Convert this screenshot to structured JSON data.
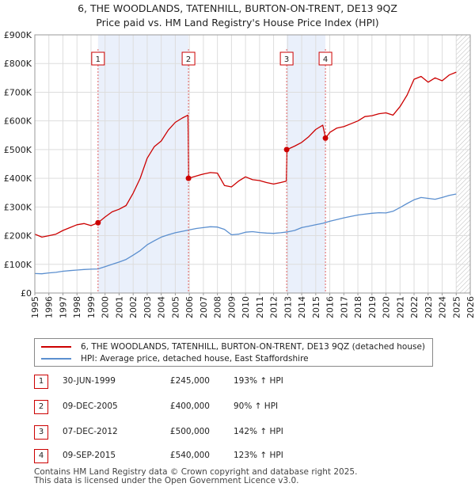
{
  "title_line1": "6, THE WOODLANDS, TATENHILL, BURTON-ON-TRENT, DE13 9QZ",
  "title_line2": "Price paid vs. HM Land Registry's House Price Index (HPI)",
  "chart_data": {
    "type": "line",
    "title": "6, THE WOODLANDS, TATENHILL, BURTON-ON-TRENT, DE13 9QZ — Price paid vs. HM Land Registry's House Price Index (HPI)",
    "xlim": [
      1995,
      2026
    ],
    "ylim": [
      0,
      900000
    ],
    "x_ticks": [
      1995,
      1996,
      1997,
      1998,
      1999,
      2000,
      2001,
      2002,
      2003,
      2004,
      2005,
      2006,
      2007,
      2008,
      2009,
      2010,
      2011,
      2012,
      2013,
      2014,
      2015,
      2016,
      2017,
      2018,
      2019,
      2020,
      2021,
      2022,
      2023,
      2024,
      2025,
      2026
    ],
    "y_ticks": [
      0,
      100000,
      200000,
      300000,
      400000,
      500000,
      600000,
      700000,
      800000,
      900000
    ],
    "y_tick_labels": [
      "£0",
      "£100K",
      "£200K",
      "£300K",
      "£400K",
      "£500K",
      "£600K",
      "£700K",
      "£800K",
      "£900K"
    ],
    "shaded_periods": [
      [
        1999.5,
        2005.94
      ],
      [
        2012.93,
        2015.69
      ]
    ],
    "hatched_region": [
      2025.0,
      2026.0
    ],
    "series": [
      {
        "name": "6, THE WOODLANDS, TATENHILL, BURTON-ON-TRENT, DE13 9QZ (detached house)",
        "color": "#cc0000",
        "x": [
          1995.0,
          1995.5,
          1996.0,
          1996.5,
          1997.0,
          1997.5,
          1998.0,
          1998.5,
          1999.0,
          1999.5,
          2000.0,
          2000.5,
          2001.0,
          2001.5,
          2002.0,
          2002.5,
          2003.0,
          2003.5,
          2004.0,
          2004.5,
          2005.0,
          2005.5,
          2005.9,
          2005.95,
          2006.5,
          2007.0,
          2007.5,
          2008.0,
          2008.5,
          2009.0,
          2009.5,
          2010.0,
          2010.5,
          2011.0,
          2011.5,
          2012.0,
          2012.5,
          2012.9,
          2012.95,
          2013.5,
          2014.0,
          2014.5,
          2015.0,
          2015.5,
          2015.7,
          2016.0,
          2016.5,
          2017.0,
          2017.5,
          2018.0,
          2018.5,
          2019.0,
          2019.5,
          2020.0,
          2020.5,
          2021.0,
          2021.5,
          2022.0,
          2022.5,
          2023.0,
          2023.5,
          2024.0,
          2024.5,
          2025.0
        ],
        "y": [
          205000,
          195000,
          200000,
          205000,
          218000,
          228000,
          238000,
          242000,
          235000,
          245000,
          265000,
          283000,
          292000,
          305000,
          348000,
          400000,
          470000,
          510000,
          530000,
          568000,
          595000,
          610000,
          620000,
          400000,
          408000,
          415000,
          420000,
          418000,
          375000,
          370000,
          390000,
          405000,
          395000,
          392000,
          385000,
          380000,
          385000,
          390000,
          500000,
          512000,
          525000,
          545000,
          570000,
          585000,
          540000,
          560000,
          575000,
          580000,
          590000,
          600000,
          615000,
          618000,
          625000,
          628000,
          620000,
          650000,
          690000,
          745000,
          755000,
          735000,
          750000,
          740000,
          760000,
          770000
        ]
      },
      {
        "name": "HPI: Average price, detached house, East Staffordshire",
        "color": "#5b8fcf",
        "x": [
          1995.0,
          1995.5,
          1996.0,
          1996.5,
          1997.0,
          1997.5,
          1998.0,
          1998.5,
          1999.0,
          1999.5,
          2000.0,
          2000.5,
          2001.0,
          2001.5,
          2002.0,
          2002.5,
          2003.0,
          2003.5,
          2004.0,
          2004.5,
          2005.0,
          2005.5,
          2006.0,
          2006.5,
          2007.0,
          2007.5,
          2008.0,
          2008.5,
          2009.0,
          2009.5,
          2010.0,
          2010.5,
          2011.0,
          2011.5,
          2012.0,
          2012.5,
          2013.0,
          2013.5,
          2014.0,
          2014.5,
          2015.0,
          2015.5,
          2016.0,
          2016.5,
          2017.0,
          2017.5,
          2018.0,
          2018.5,
          2019.0,
          2019.5,
          2020.0,
          2020.5,
          2021.0,
          2021.5,
          2022.0,
          2022.5,
          2023.0,
          2023.5,
          2024.0,
          2024.5,
          2025.0
        ],
        "y": [
          68000,
          67000,
          70000,
          72000,
          76000,
          78000,
          80000,
          82000,
          83000,
          84000,
          92000,
          100000,
          108000,
          117000,
          132000,
          148000,
          168000,
          182000,
          195000,
          203000,
          210000,
          215000,
          220000,
          225000,
          228000,
          231000,
          230000,
          222000,
          203000,
          205000,
          212000,
          214000,
          211000,
          209000,
          208000,
          210000,
          213000,
          218000,
          228000,
          233000,
          238000,
          243000,
          250000,
          256000,
          262000,
          267000,
          272000,
          275000,
          278000,
          280000,
          279000,
          285000,
          298000,
          312000,
          325000,
          333000,
          330000,
          327000,
          333000,
          340000,
          345000
        ]
      }
    ],
    "annotations": [
      {
        "label": "1",
        "x": 1999.5,
        "y": 245000
      },
      {
        "label": "2",
        "x": 2005.94,
        "y": 400000
      },
      {
        "label": "3",
        "x": 2012.93,
        "y": 500000
      },
      {
        "label": "4",
        "x": 2015.69,
        "y": 540000
      }
    ]
  },
  "legend": {
    "property_label": "6, THE WOODLANDS, TATENHILL, BURTON-ON-TRENT, DE13 9QZ (detached house)",
    "hpi_label": "HPI: Average price, detached house, East Staffordshire",
    "property_color": "#cc0000",
    "hpi_color": "#5b8fcf"
  },
  "transactions": [
    {
      "num": "1",
      "date": "30-JUN-1999",
      "price": "£245,000",
      "hpi": "193% ↑ HPI"
    },
    {
      "num": "2",
      "date": "09-DEC-2005",
      "price": "£400,000",
      "hpi": "90% ↑ HPI"
    },
    {
      "num": "3",
      "date": "07-DEC-2012",
      "price": "£500,000",
      "hpi": "142% ↑ HPI"
    },
    {
      "num": "4",
      "date": "09-SEP-2015",
      "price": "£540,000",
      "hpi": "123% ↑ HPI"
    }
  ],
  "footer_line1": "Contains HM Land Registry data © Crown copyright and database right 2025.",
  "footer_line2": "This data is licensed under the Open Government Licence v3.0."
}
